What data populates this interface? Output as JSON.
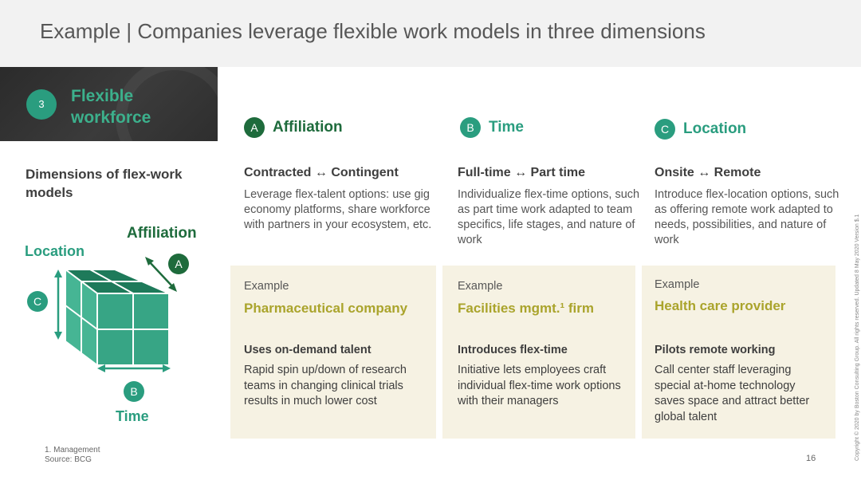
{
  "header": {
    "title": "Example | Companies leverage flexible work models in three dimensions"
  },
  "banner": {
    "number": "3",
    "title": "Flexible workforce"
  },
  "left_panel": {
    "heading": "Dimensions of flex-work models",
    "labels": {
      "affiliation": "Affiliation",
      "location": "Location",
      "time": "Time"
    },
    "markers": {
      "a": "A",
      "b": "B",
      "c": "C"
    }
  },
  "columns": [
    {
      "marker": "A",
      "title": "Affiliation",
      "subtitle": "Contracted ↔ Contingent",
      "description": "Leverage flex-talent options: use gig economy platforms, share workforce with partners in your ecosystem, etc.",
      "example_label": "Example",
      "company": "Pharmaceutical company",
      "example_heading": "Uses on-demand talent",
      "example_body": "Rapid spin up/down of research teams in changing clinical trials results in much lower cost"
    },
    {
      "marker": "B",
      "title": "Time",
      "subtitle": "Full-time ↔ Part time",
      "description": "Individualize flex-time options, such as part time work adapted to team specifics, life stages, and nature of work",
      "example_label": "Example",
      "company": "Facilities mgmt.¹ firm",
      "example_heading": "Introduces flex-time",
      "example_body": "Initiative lets employees craft individual flex-time work options with their managers"
    },
    {
      "marker": "C",
      "title": "Location",
      "subtitle": "Onsite ↔ Remote",
      "description": "Introduce flex-location options, such as offering remote work adapted to needs, possibilities, and nature of work",
      "example_label": "Example",
      "company": "Health care provider",
      "example_heading": "Pilots remote working",
      "example_body": "Call center staff leveraging special at-home technology saves space and attract better global talent"
    }
  ],
  "footer": {
    "footnote": "1. Management",
    "source": "Source: BCG",
    "page_number": "16",
    "copyright": "Copyright © 2020 by Boston Consulting Group. All rights reserved.   Updated 8 May 2020 Version $.1"
  },
  "colors": {
    "teal": "#2a9d7f",
    "dark_green": "#1e6b3c",
    "olive": "#aaa42c",
    "card_bg": "#f6f2e3",
    "banner_bg": "#2f2f2f"
  }
}
